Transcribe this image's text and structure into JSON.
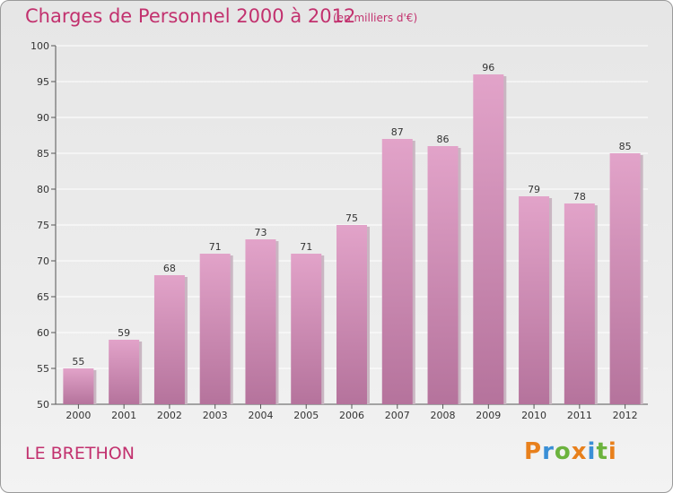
{
  "title": "Charges de Personnel 2000 à 2012",
  "unit": "(en milliers d'€)",
  "commune": "LE BRETHON",
  "logo": {
    "text": "Proxiti",
    "colors": [
      "#e8801c",
      "#3a8fd6",
      "#6cb33e",
      "#e8801c",
      "#3a8fd6",
      "#6cb33e",
      "#e8801c"
    ]
  },
  "colors": {
    "accent": "#c2316e",
    "bar_top": "#e2a3c9",
    "bar_bottom": "#b5739c",
    "bar_shadow": "#c9b6c2"
  },
  "chart_data": {
    "type": "bar",
    "categories": [
      "2000",
      "2001",
      "2002",
      "2003",
      "2004",
      "2005",
      "2006",
      "2007",
      "2008",
      "2009",
      "2010",
      "2011",
      "2012"
    ],
    "values": [
      55,
      59,
      68,
      71,
      73,
      71,
      75,
      87,
      86,
      96,
      79,
      78,
      85
    ],
    "ylim": [
      50,
      100
    ],
    "yticks": [
      50,
      55,
      60,
      65,
      70,
      75,
      80,
      85,
      90,
      95,
      100
    ],
    "grid": true,
    "legend": "none"
  }
}
